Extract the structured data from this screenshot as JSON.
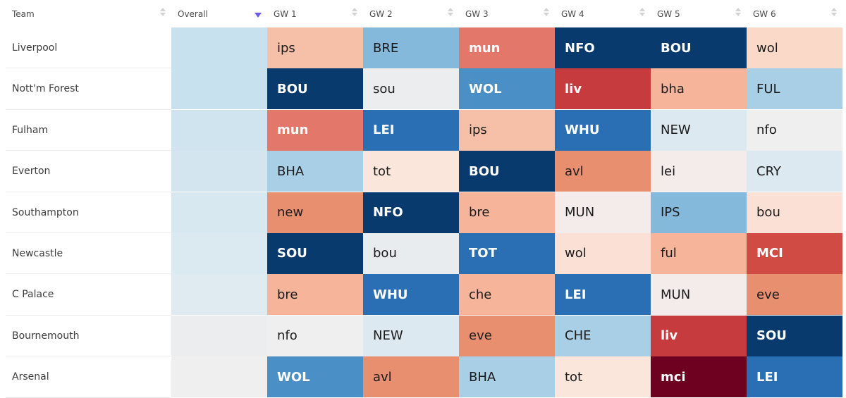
{
  "header": {
    "team": "Team",
    "overall": "Overall",
    "gameweeks": [
      "GW 1",
      "GW 2",
      "GW 3",
      "GW 4",
      "GW 5",
      "GW 6"
    ]
  },
  "colors": {
    "dark_navy": "#083a6e",
    "blue": "#2a6fb3",
    "mid_blue": "#4a90c6",
    "light_blue": "#84b9dc",
    "pale_blue": "#a8cfe6",
    "ice": "#dde9f1",
    "neutral": "#f0eff0",
    "pale_peach": "#fbe1d5",
    "peach": "#f6b59a",
    "salmon": "#e88f70",
    "coral": "#e3786a",
    "red": "#c63b3d",
    "maroon": "#6e0020",
    "sort_active": "#6b5cf0"
  },
  "rows": [
    {
      "team": "Liverpool",
      "overall": "#c8e1ee",
      "fixtures": [
        {
          "opp": "ips",
          "c": "#f6bfa7",
          "dark": false
        },
        {
          "opp": "BRE",
          "c": "#84b9dc",
          "dark": false
        },
        {
          "opp": "mun",
          "c": "#e3786a",
          "dark": true
        },
        {
          "opp": "NFO",
          "c": "#083a6e",
          "dark": true
        },
        {
          "opp": "BOU",
          "c": "#083a6e",
          "dark": true
        },
        {
          "opp": "wol",
          "c": "#fbd9c8",
          "dark": false
        }
      ]
    },
    {
      "team": "Nott'm Forest",
      "overall": "#c8e1ee",
      "fixtures": [
        {
          "opp": "BOU",
          "c": "#083a6e",
          "dark": true
        },
        {
          "opp": "sou",
          "c": "#ecedef",
          "dark": false
        },
        {
          "opp": "WOL",
          "c": "#4a90c6",
          "dark": true
        },
        {
          "opp": "liv",
          "c": "#c63b3d",
          "dark": true
        },
        {
          "opp": "bha",
          "c": "#f6b59a",
          "dark": false
        },
        {
          "opp": "FUL",
          "c": "#a8cfe6",
          "dark": false
        }
      ]
    },
    {
      "team": "Fulham",
      "overall": "#cfe4ef",
      "fixtures": [
        {
          "opp": "mun",
          "c": "#e3786a",
          "dark": true
        },
        {
          "opp": "LEI",
          "c": "#2a6fb3",
          "dark": true
        },
        {
          "opp": "ips",
          "c": "#f6bfa7",
          "dark": false
        },
        {
          "opp": "WHU",
          "c": "#2a6fb3",
          "dark": true
        },
        {
          "opp": "NEW",
          "c": "#dde9f1",
          "dark": false
        },
        {
          "opp": "nfo",
          "c": "#f0eff0",
          "dark": false
        }
      ]
    },
    {
      "team": "Everton",
      "overall": "#d3e6f0",
      "fixtures": [
        {
          "opp": "BHA",
          "c": "#a8cfe6",
          "dark": false
        },
        {
          "opp": "tot",
          "c": "#fbe6dc",
          "dark": false
        },
        {
          "opp": "BOU",
          "c": "#083a6e",
          "dark": true
        },
        {
          "opp": "avl",
          "c": "#e88f70",
          "dark": false
        },
        {
          "opp": "lei",
          "c": "#f3ecea",
          "dark": false
        },
        {
          "opp": "CRY",
          "c": "#dde9f1",
          "dark": false
        }
      ]
    },
    {
      "team": "Southampton",
      "overall": "#d8e8f1",
      "fixtures": [
        {
          "opp": "new",
          "c": "#e88f70",
          "dark": false
        },
        {
          "opp": "NFO",
          "c": "#083a6e",
          "dark": true
        },
        {
          "opp": "bre",
          "c": "#f6b59a",
          "dark": false
        },
        {
          "opp": "MUN",
          "c": "#f3eceb",
          "dark": false
        },
        {
          "opp": "IPS",
          "c": "#84b9dc",
          "dark": false
        },
        {
          "opp": "bou",
          "c": "#fbe1d5",
          "dark": false
        }
      ]
    },
    {
      "team": "Newcastle",
      "overall": "#dbe9f1",
      "fixtures": [
        {
          "opp": "SOU",
          "c": "#083a6e",
          "dark": true
        },
        {
          "opp": "bou",
          "c": "#e9ecef",
          "dark": false
        },
        {
          "opp": "TOT",
          "c": "#2a6fb3",
          "dark": true
        },
        {
          "opp": "wol",
          "c": "#fbe1d5",
          "dark": false
        },
        {
          "opp": "ful",
          "c": "#f6b59a",
          "dark": false
        },
        {
          "opp": "MCI",
          "c": "#cf4b44",
          "dark": true
        }
      ]
    },
    {
      "team": "C Palace",
      "overall": "#e0ebf1",
      "fixtures": [
        {
          "opp": "bre",
          "c": "#f6b59a",
          "dark": false
        },
        {
          "opp": "WHU",
          "c": "#2a6fb3",
          "dark": true
        },
        {
          "opp": "che",
          "c": "#f6b59a",
          "dark": false
        },
        {
          "opp": "LEI",
          "c": "#2a6fb3",
          "dark": true
        },
        {
          "opp": "MUN",
          "c": "#f3eceb",
          "dark": false
        },
        {
          "opp": "eve",
          "c": "#e88f70",
          "dark": false
        }
      ]
    },
    {
      "team": "Bournemouth",
      "overall": "#ecedee",
      "fixtures": [
        {
          "opp": "nfo",
          "c": "#f0eff0",
          "dark": false
        },
        {
          "opp": "NEW",
          "c": "#dde9f1",
          "dark": false
        },
        {
          "opp": "eve",
          "c": "#e88f70",
          "dark": false
        },
        {
          "opp": "CHE",
          "c": "#a8cfe6",
          "dark": false
        },
        {
          "opp": "liv",
          "c": "#c63b3d",
          "dark": true
        },
        {
          "opp": "SOU",
          "c": "#083a6e",
          "dark": true
        }
      ]
    },
    {
      "team": "Arsenal",
      "overall": "#efeff0",
      "fixtures": [
        {
          "opp": "WOL",
          "c": "#4a90c6",
          "dark": true
        },
        {
          "opp": "avl",
          "c": "#e88f70",
          "dark": false
        },
        {
          "opp": "BHA",
          "c": "#a8cfe6",
          "dark": false
        },
        {
          "opp": "tot",
          "c": "#fbe6dc",
          "dark": false
        },
        {
          "opp": "mci",
          "c": "#6e0020",
          "dark": true
        },
        {
          "opp": "LEI",
          "c": "#2a6fb3",
          "dark": true
        }
      ]
    }
  ]
}
